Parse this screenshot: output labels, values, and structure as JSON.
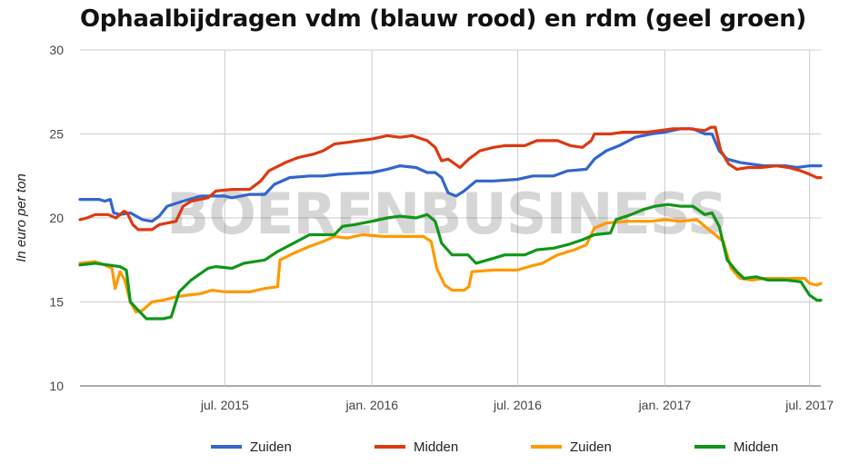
{
  "chart_data": {
    "type": "line",
    "title": "Ophaalbijdragen vdm (blauw rood) en rdm (geel groen)",
    "ylabel": "In euro per ton",
    "xlabel": "",
    "ylim": [
      10,
      30
    ],
    "yticks": [
      10,
      15,
      20,
      25,
      30
    ],
    "xlim": [
      "2015-01-01",
      "2017-07-15"
    ],
    "xticks": [
      {
        "date": "2015-07-01",
        "label": "jul. 2015"
      },
      {
        "date": "2016-01-01",
        "label": "jan. 2016"
      },
      {
        "date": "2016-07-01",
        "label": "jul. 2016"
      },
      {
        "date": "2017-01-01",
        "label": "jan. 2017"
      },
      {
        "date": "2017-07-01",
        "label": "jul. 2017"
      }
    ],
    "grid": true,
    "legend_position": "bottom",
    "watermark": "BOERENBUSINESS",
    "series": [
      {
        "name": "Zuiden",
        "color": "#3366cc",
        "points": [
          [
            "2015-01-01",
            21.1
          ],
          [
            "2015-01-25",
            21.1
          ],
          [
            "2015-02-01",
            21.0
          ],
          [
            "2015-02-08",
            21.1
          ],
          [
            "2015-02-12",
            20.3
          ],
          [
            "2015-02-20",
            20.2
          ],
          [
            "2015-03-05",
            20.3
          ],
          [
            "2015-03-20",
            19.9
          ],
          [
            "2015-04-01",
            19.8
          ],
          [
            "2015-04-10",
            20.1
          ],
          [
            "2015-04-20",
            20.7
          ],
          [
            "2015-05-10",
            21.0
          ],
          [
            "2015-06-01",
            21.3
          ],
          [
            "2015-07-01",
            21.3
          ],
          [
            "2015-07-10",
            21.2
          ],
          [
            "2015-08-01",
            21.4
          ],
          [
            "2015-08-20",
            21.4
          ],
          [
            "2015-09-01",
            22.0
          ],
          [
            "2015-09-20",
            22.4
          ],
          [
            "2015-10-15",
            22.5
          ],
          [
            "2015-11-01",
            22.5
          ],
          [
            "2015-11-20",
            22.6
          ],
          [
            "2016-01-01",
            22.7
          ],
          [
            "2016-01-20",
            22.9
          ],
          [
            "2016-02-05",
            23.1
          ],
          [
            "2016-02-25",
            23.0
          ],
          [
            "2016-03-10",
            22.7
          ],
          [
            "2016-03-20",
            22.7
          ],
          [
            "2016-03-28",
            22.4
          ],
          [
            "2016-04-05",
            21.5
          ],
          [
            "2016-04-15",
            21.3
          ],
          [
            "2016-04-25",
            21.6
          ],
          [
            "2016-05-10",
            22.2
          ],
          [
            "2016-06-01",
            22.2
          ],
          [
            "2016-07-01",
            22.3
          ],
          [
            "2016-07-20",
            22.5
          ],
          [
            "2016-08-15",
            22.5
          ],
          [
            "2016-09-01",
            22.8
          ],
          [
            "2016-09-25",
            22.9
          ],
          [
            "2016-10-05",
            23.5
          ],
          [
            "2016-10-20",
            24.0
          ],
          [
            "2016-11-05",
            24.3
          ],
          [
            "2016-11-25",
            24.8
          ],
          [
            "2016-12-15",
            25.0
          ],
          [
            "2017-01-01",
            25.1
          ],
          [
            "2017-01-20",
            25.3
          ],
          [
            "2017-02-05",
            25.3
          ],
          [
            "2017-02-20",
            25.0
          ],
          [
            "2017-03-01",
            25.0
          ],
          [
            "2017-03-10",
            24.0
          ],
          [
            "2017-03-20",
            23.5
          ],
          [
            "2017-04-05",
            23.3
          ],
          [
            "2017-04-20",
            23.2
          ],
          [
            "2017-05-05",
            23.1
          ],
          [
            "2017-06-01",
            23.1
          ],
          [
            "2017-06-15",
            23.0
          ],
          [
            "2017-07-01",
            23.1
          ],
          [
            "2017-07-15",
            23.1
          ]
        ]
      },
      {
        "name": "Midden",
        "color": "#dc3912",
        "points": [
          [
            "2015-01-01",
            19.9
          ],
          [
            "2015-01-10",
            20.0
          ],
          [
            "2015-01-20",
            20.2
          ],
          [
            "2015-02-05",
            20.2
          ],
          [
            "2015-02-15",
            20.0
          ],
          [
            "2015-02-25",
            20.4
          ],
          [
            "2015-03-01",
            20.3
          ],
          [
            "2015-03-08",
            19.6
          ],
          [
            "2015-03-15",
            19.3
          ],
          [
            "2015-04-01",
            19.3
          ],
          [
            "2015-04-10",
            19.6
          ],
          [
            "2015-05-01",
            19.8
          ],
          [
            "2015-05-10",
            20.7
          ],
          [
            "2015-05-20",
            21.0
          ],
          [
            "2015-06-10",
            21.2
          ],
          [
            "2015-06-20",
            21.6
          ],
          [
            "2015-07-10",
            21.7
          ],
          [
            "2015-08-01",
            21.7
          ],
          [
            "2015-08-15",
            22.2
          ],
          [
            "2015-08-25",
            22.8
          ],
          [
            "2015-09-15",
            23.3
          ],
          [
            "2015-10-01",
            23.6
          ],
          [
            "2015-10-20",
            23.8
          ],
          [
            "2015-11-01",
            24.0
          ],
          [
            "2015-11-15",
            24.4
          ],
          [
            "2015-12-01",
            24.5
          ],
          [
            "2016-01-01",
            24.7
          ],
          [
            "2016-01-20",
            24.9
          ],
          [
            "2016-02-05",
            24.8
          ],
          [
            "2016-02-20",
            24.9
          ],
          [
            "2016-03-10",
            24.6
          ],
          [
            "2016-03-20",
            24.2
          ],
          [
            "2016-03-28",
            23.4
          ],
          [
            "2016-04-05",
            23.5
          ],
          [
            "2016-04-20",
            23.0
          ],
          [
            "2016-05-01",
            23.5
          ],
          [
            "2016-05-15",
            24.0
          ],
          [
            "2016-06-01",
            24.2
          ],
          [
            "2016-06-15",
            24.3
          ],
          [
            "2016-07-10",
            24.3
          ],
          [
            "2016-07-25",
            24.6
          ],
          [
            "2016-08-20",
            24.6
          ],
          [
            "2016-09-05",
            24.3
          ],
          [
            "2016-09-20",
            24.2
          ],
          [
            "2016-10-01",
            24.6
          ],
          [
            "2016-10-05",
            25.0
          ],
          [
            "2016-10-25",
            25.0
          ],
          [
            "2016-11-10",
            25.1
          ],
          [
            "2016-12-10",
            25.1
          ],
          [
            "2016-12-25",
            25.2
          ],
          [
            "2017-01-10",
            25.3
          ],
          [
            "2017-02-01",
            25.3
          ],
          [
            "2017-02-20",
            25.2
          ],
          [
            "2017-02-28",
            25.4
          ],
          [
            "2017-03-05",
            25.4
          ],
          [
            "2017-03-12",
            24.0
          ],
          [
            "2017-03-22",
            23.2
          ],
          [
            "2017-04-01",
            22.9
          ],
          [
            "2017-04-15",
            23.0
          ],
          [
            "2017-05-01",
            23.0
          ],
          [
            "2017-05-20",
            23.1
          ],
          [
            "2017-06-05",
            23.0
          ],
          [
            "2017-06-20",
            22.8
          ],
          [
            "2017-07-01",
            22.6
          ],
          [
            "2017-07-10",
            22.4
          ],
          [
            "2017-07-15",
            22.4
          ]
        ]
      },
      {
        "name": "Zuiden",
        "color": "#ff9900",
        "points": [
          [
            "2015-01-01",
            17.3
          ],
          [
            "2015-01-20",
            17.4
          ],
          [
            "2015-02-01",
            17.2
          ],
          [
            "2015-02-10",
            17.0
          ],
          [
            "2015-02-14",
            15.8
          ],
          [
            "2015-02-20",
            16.8
          ],
          [
            "2015-02-26",
            16.3
          ],
          [
            "2015-03-05",
            15.0
          ],
          [
            "2015-03-12",
            14.4
          ],
          [
            "2015-03-20",
            14.5
          ],
          [
            "2015-04-01",
            15.0
          ],
          [
            "2015-04-15",
            15.1
          ],
          [
            "2015-05-01",
            15.3
          ],
          [
            "2015-05-15",
            15.4
          ],
          [
            "2015-06-01",
            15.5
          ],
          [
            "2015-06-15",
            15.7
          ],
          [
            "2015-07-01",
            15.6
          ],
          [
            "2015-08-01",
            15.6
          ],
          [
            "2015-08-20",
            15.8
          ],
          [
            "2015-09-05",
            15.9
          ],
          [
            "2015-09-08",
            17.5
          ],
          [
            "2015-09-25",
            17.9
          ],
          [
            "2015-10-15",
            18.3
          ],
          [
            "2015-11-01",
            18.6
          ],
          [
            "2015-11-15",
            18.9
          ],
          [
            "2015-12-01",
            18.8
          ],
          [
            "2015-12-20",
            19.0
          ],
          [
            "2016-01-15",
            18.9
          ],
          [
            "2016-02-05",
            18.9
          ],
          [
            "2016-03-05",
            18.9
          ],
          [
            "2016-03-15",
            18.6
          ],
          [
            "2016-03-22",
            17.0
          ],
          [
            "2016-04-01",
            16.0
          ],
          [
            "2016-04-10",
            15.7
          ],
          [
            "2016-04-25",
            15.7
          ],
          [
            "2016-05-01",
            15.9
          ],
          [
            "2016-05-05",
            16.8
          ],
          [
            "2016-06-01",
            16.9
          ],
          [
            "2016-07-01",
            16.9
          ],
          [
            "2016-07-15",
            17.1
          ],
          [
            "2016-08-01",
            17.3
          ],
          [
            "2016-08-20",
            17.8
          ],
          [
            "2016-09-10",
            18.1
          ],
          [
            "2016-09-25",
            18.4
          ],
          [
            "2016-10-05",
            19.4
          ],
          [
            "2016-10-20",
            19.7
          ],
          [
            "2016-11-15",
            19.8
          ],
          [
            "2016-12-15",
            19.8
          ],
          [
            "2017-01-01",
            19.9
          ],
          [
            "2017-01-20",
            19.8
          ],
          [
            "2017-02-10",
            19.9
          ],
          [
            "2017-02-25",
            19.3
          ],
          [
            "2017-03-05",
            19.0
          ],
          [
            "2017-03-15",
            18.6
          ],
          [
            "2017-03-25",
            17.0
          ],
          [
            "2017-04-05",
            16.4
          ],
          [
            "2017-04-20",
            16.3
          ],
          [
            "2017-05-05",
            16.4
          ],
          [
            "2017-06-01",
            16.4
          ],
          [
            "2017-06-25",
            16.4
          ],
          [
            "2017-07-01",
            16.1
          ],
          [
            "2017-07-10",
            16.0
          ],
          [
            "2017-07-15",
            16.1
          ]
        ]
      },
      {
        "name": "Midden",
        "color": "#109618",
        "points": [
          [
            "2015-01-01",
            17.2
          ],
          [
            "2015-01-20",
            17.3
          ],
          [
            "2015-02-05",
            17.2
          ],
          [
            "2015-02-20",
            17.1
          ],
          [
            "2015-02-28",
            16.9
          ],
          [
            "2015-03-05",
            15.0
          ],
          [
            "2015-03-15",
            14.5
          ],
          [
            "2015-03-25",
            14.0
          ],
          [
            "2015-04-15",
            14.0
          ],
          [
            "2015-04-25",
            14.1
          ],
          [
            "2015-05-05",
            15.6
          ],
          [
            "2015-05-20",
            16.3
          ],
          [
            "2015-06-10",
            17.0
          ],
          [
            "2015-06-20",
            17.1
          ],
          [
            "2015-07-10",
            17.0
          ],
          [
            "2015-07-25",
            17.3
          ],
          [
            "2015-08-20",
            17.5
          ],
          [
            "2015-09-05",
            18.0
          ],
          [
            "2015-09-25",
            18.5
          ],
          [
            "2015-10-15",
            19.0
          ],
          [
            "2015-11-15",
            19.0
          ],
          [
            "2015-11-25",
            19.5
          ],
          [
            "2015-12-10",
            19.6
          ],
          [
            "2016-01-01",
            19.8
          ],
          [
            "2016-01-20",
            20.0
          ],
          [
            "2016-02-05",
            20.1
          ],
          [
            "2016-02-25",
            20.0
          ],
          [
            "2016-03-10",
            20.2
          ],
          [
            "2016-03-20",
            19.8
          ],
          [
            "2016-03-28",
            18.5
          ],
          [
            "2016-04-10",
            17.8
          ],
          [
            "2016-04-30",
            17.8
          ],
          [
            "2016-05-10",
            17.3
          ],
          [
            "2016-06-01",
            17.6
          ],
          [
            "2016-06-15",
            17.8
          ],
          [
            "2016-07-10",
            17.8
          ],
          [
            "2016-07-25",
            18.1
          ],
          [
            "2016-08-15",
            18.2
          ],
          [
            "2016-09-01",
            18.4
          ],
          [
            "2016-09-20",
            18.7
          ],
          [
            "2016-10-05",
            19.0
          ],
          [
            "2016-10-25",
            19.1
          ],
          [
            "2016-11-01",
            19.9
          ],
          [
            "2016-11-20",
            20.2
          ],
          [
            "2016-12-05",
            20.5
          ],
          [
            "2016-12-20",
            20.7
          ],
          [
            "2017-01-05",
            20.8
          ],
          [
            "2017-01-20",
            20.7
          ],
          [
            "2017-02-05",
            20.7
          ],
          [
            "2017-02-20",
            20.2
          ],
          [
            "2017-03-01",
            20.3
          ],
          [
            "2017-03-10",
            19.5
          ],
          [
            "2017-03-20",
            17.5
          ],
          [
            "2017-04-01",
            16.8
          ],
          [
            "2017-04-10",
            16.4
          ],
          [
            "2017-04-25",
            16.5
          ],
          [
            "2017-05-10",
            16.3
          ],
          [
            "2017-06-01",
            16.3
          ],
          [
            "2017-06-20",
            16.2
          ],
          [
            "2017-07-01",
            15.4
          ],
          [
            "2017-07-10",
            15.1
          ],
          [
            "2017-07-15",
            15.1
          ]
        ]
      }
    ]
  }
}
